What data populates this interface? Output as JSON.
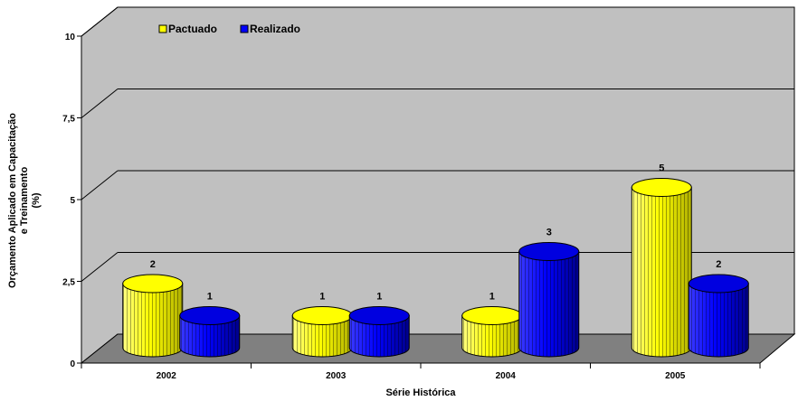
{
  "chart_data": {
    "type": "bar",
    "categories": [
      "2002",
      "2003",
      "2004",
      "2005"
    ],
    "series": [
      {
        "name": "Pactuado",
        "values": [
          2,
          1,
          1,
          5
        ],
        "labels": [
          "2",
          "1",
          "1",
          "5"
        ],
        "color": "#ffff00"
      },
      {
        "name": "Realizado",
        "values": [
          1,
          1,
          3,
          2
        ],
        "labels": [
          "1",
          "1",
          "3",
          "2"
        ],
        "color": "#0000ff"
      }
    ],
    "yticks": [
      "0",
      "2,5",
      "5",
      "7,5",
      "10"
    ],
    "ylim": [
      0,
      10
    ],
    "xlabel": "Série Histórica",
    "ylabel_lines": [
      "Orçamento Aplicado em Capacitação",
      "e Treinamento",
      "(%)"
    ],
    "legend_position": "top-left",
    "grid": true,
    "style": "3d-cylinder",
    "floor_color": "#808080",
    "wall_color": "#c0c0c0"
  }
}
